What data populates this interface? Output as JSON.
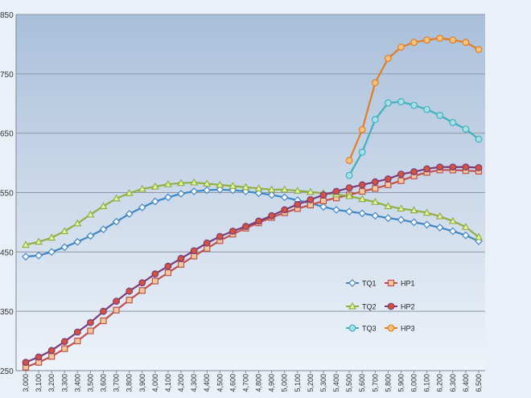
{
  "chart_data": {
    "type": "line",
    "title": "",
    "xlabel": "",
    "ylabel": "",
    "x": [
      "3,000",
      "3,100",
      "3,200",
      "3,300",
      "3,400",
      "3,500",
      "3,600",
      "3,700",
      "3,800",
      "3,900",
      "4,000",
      "4,100",
      "4,200",
      "4,300",
      "4,400",
      "4,500",
      "4,600",
      "4,700",
      "4,800",
      "4,900",
      "5,000",
      "5,100",
      "5,200",
      "5,300",
      "5,400",
      "5,500",
      "5,600",
      "5,700",
      "5,800",
      "5,900",
      "6,000",
      "6,100",
      "6,200",
      "6,300",
      "6,400",
      "6,500"
    ],
    "y_tick_labels": [
      "850",
      "750",
      "650",
      "550",
      "450",
      "350",
      "250"
    ],
    "ylim": [
      250,
      850
    ],
    "grid": true,
    "legend_position": "bottom-right",
    "colors": {
      "plot_top": "#a9bfda",
      "plot_bottom": "#eef3f9",
      "gridline": "#8d97a3"
    },
    "series": [
      {
        "name": "TQ1",
        "color": "#3f86c4",
        "marker": "diamond",
        "values": [
          442,
          444,
          450,
          458,
          467,
          477,
          488,
          501,
          514,
          525,
          535,
          542,
          548,
          552,
          554,
          555,
          554,
          552,
          549,
          546,
          542,
          537,
          532,
          526,
          521,
          518,
          515,
          511,
          507,
          504,
          500,
          496,
          491,
          485,
          478,
          468
        ]
      },
      {
        "name": "HP1",
        "color": "#c0504d",
        "fill": "#f3c99a",
        "marker": "square",
        "values": [
          256,
          264,
          274,
          287,
          300,
          317,
          334,
          352,
          369,
          385,
          401,
          415,
          429,
          443,
          456,
          469,
          480,
          490,
          499,
          508,
          516,
          523,
          529,
          536,
          541,
          546,
          552,
          557,
          563,
          570,
          578,
          584,
          588,
          588,
          587,
          586
        ]
      },
      {
        "name": "TQ2",
        "color": "#8faf45",
        "fill": "#e8f2a0",
        "marker": "triangle",
        "values": [
          462,
          467,
          474,
          485,
          498,
          513,
          527,
          540,
          549,
          556,
          560,
          564,
          566,
          567,
          565,
          563,
          561,
          559,
          557,
          555,
          555,
          553,
          551,
          549,
          547,
          544,
          539,
          534,
          527,
          523,
          520,
          516,
          510,
          502,
          492,
          475
        ]
      },
      {
        "name": "HP2",
        "color": "#7a3b78",
        "fill": "#d5523c",
        "marker": "circle",
        "values": [
          264,
          273,
          284,
          299,
          315,
          331,
          350,
          367,
          384,
          398,
          413,
          426,
          439,
          452,
          465,
          476,
          485,
          493,
          502,
          511,
          521,
          530,
          538,
          546,
          552,
          558,
          563,
          568,
          573,
          581,
          585,
          590,
          593,
          593,
          593,
          592
        ]
      },
      {
        "name": "TQ3",
        "color": "#3fb0bc",
        "fill": "#a9e0e8",
        "marker": "circle",
        "values": [
          null,
          null,
          null,
          null,
          null,
          null,
          null,
          null,
          null,
          null,
          null,
          null,
          null,
          null,
          null,
          null,
          null,
          null,
          null,
          null,
          null,
          null,
          null,
          null,
          null,
          579,
          618,
          673,
          701,
          703,
          697,
          690,
          680,
          668,
          657,
          640
        ]
      },
      {
        "name": "HP3",
        "color": "#e07e25",
        "fill": "#f4c27a",
        "marker": "circle",
        "values": [
          null,
          null,
          null,
          null,
          null,
          null,
          null,
          null,
          null,
          null,
          null,
          null,
          null,
          null,
          null,
          null,
          null,
          null,
          null,
          null,
          null,
          null,
          null,
          null,
          null,
          604,
          656,
          735,
          776,
          795,
          803,
          807,
          810,
          807,
          803,
          791
        ]
      }
    ]
  }
}
